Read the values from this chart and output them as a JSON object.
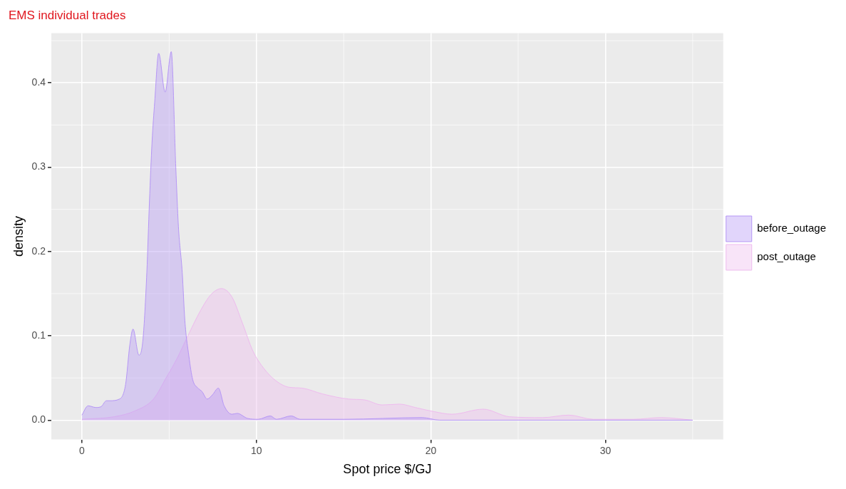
{
  "chart_data": {
    "type": "area",
    "title": "EMS individual trades",
    "xlabel": "Spot price $/GJ",
    "ylabel": "density",
    "xlim": [
      -1.75,
      36.75
    ],
    "xticks": [
      0,
      10,
      20,
      30
    ],
    "ylim": [
      -0.023,
      0.459
    ],
    "yticks": [
      {
        "value": 0,
        "label": "0.0"
      },
      {
        "value": 0.1,
        "label": "0.1"
      },
      {
        "value": 0.2,
        "label": "0.2"
      },
      {
        "value": 0.3,
        "label": "0.3"
      },
      {
        "value": 0.4,
        "label": "0.4"
      }
    ],
    "grid": true,
    "legend": "right",
    "series": [
      {
        "name": "before_outage",
        "color": "#b596f5",
        "x": [
          0,
          0.35,
          0.8,
          1.1,
          1.4,
          1.6,
          2.15,
          2.5,
          2.75,
          2.93,
          3.27,
          3.5,
          3.72,
          3.87,
          4.02,
          4.17,
          4.4,
          4.77,
          5.12,
          5.38,
          5.53,
          5.75,
          5.9,
          6.13,
          6.35,
          6.65,
          6.88,
          7.18,
          7.48,
          7.82,
          8.15,
          8.6,
          8.9,
          9.5,
          10.1,
          10.8,
          11.15,
          12.0,
          12.5,
          15,
          19.5,
          20.5,
          25,
          30,
          35
        ],
        "values": [
          0.006,
          0.017,
          0.015,
          0.016,
          0.023,
          0.023,
          0.025,
          0.042,
          0.09,
          0.108,
          0.077,
          0.096,
          0.175,
          0.259,
          0.33,
          0.377,
          0.435,
          0.389,
          0.437,
          0.3,
          0.23,
          0.175,
          0.118,
          0.076,
          0.048,
          0.038,
          0.034,
          0.025,
          0.03,
          0.038,
          0.017,
          0.007,
          0.008,
          0.002,
          0.001,
          0.005,
          0.001,
          0.005,
          0.001,
          0.001,
          0.003,
          0.0,
          0.0,
          0.0,
          0.0
        ]
      },
      {
        "name": "post_outage",
        "color": "#eebbee",
        "x": [
          0,
          1.85,
          3.05,
          4.1,
          4.85,
          5.45,
          6.05,
          6.8,
          7.4,
          8.0,
          8.6,
          9.2,
          9.8,
          10.4,
          11.1,
          11.87,
          12.6,
          13.8,
          15.3,
          16.2,
          17.2,
          18.2,
          19.1,
          20.2,
          21.2,
          23.0,
          24.5,
          26.4,
          27.9,
          29.3,
          31.6,
          33.2,
          35.0
        ],
        "values": [
          0.001,
          0.004,
          0.011,
          0.025,
          0.051,
          0.073,
          0.099,
          0.13,
          0.149,
          0.156,
          0.146,
          0.115,
          0.082,
          0.062,
          0.047,
          0.039,
          0.038,
          0.031,
          0.025,
          0.024,
          0.018,
          0.019,
          0.015,
          0.01,
          0.007,
          0.013,
          0.004,
          0.003,
          0.006,
          0.001,
          0.001,
          0.003,
          0.0
        ]
      }
    ]
  }
}
